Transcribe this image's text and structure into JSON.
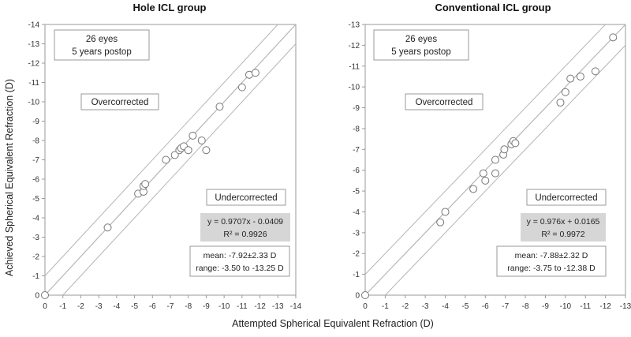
{
  "y_axis_label": "Achieved Spherical Equivalent Refraction (D)",
  "x_axis_label": "Attempted Spherical Equivalent Refraction (D)",
  "chart_data": [
    {
      "type": "scatter",
      "title": "Hole ICL group",
      "xlabel": "Attempted Spherical Equivalent Refraction (D)",
      "ylabel": "Achieved Spherical Equivalent Refraction (D)",
      "xlim": [
        0,
        -14
      ],
      "ylim": [
        0,
        -14
      ],
      "x_ticks": [
        "0",
        "-1",
        "-2",
        "-3",
        "-4",
        "-5",
        "-6",
        "-7",
        "-8",
        "-9",
        "-10",
        "-11",
        "-12",
        "-13",
        "-14"
      ],
      "y_ticks": [
        "0",
        "-1",
        "-2",
        "-3",
        "-4",
        "-5",
        "-6",
        "-7",
        "-8",
        "-9",
        "-10",
        "-11",
        "-12",
        "-13",
        "-14"
      ],
      "series": [
        {
          "name": "eyes",
          "points": [
            {
              "x": 0,
              "y": 0
            },
            {
              "x": -3.5,
              "y": -3.5
            },
            {
              "x": -5.2,
              "y": -5.25
            },
            {
              "x": -5.5,
              "y": -5.35
            },
            {
              "x": -5.5,
              "y": -5.65
            },
            {
              "x": -5.6,
              "y": -5.75
            },
            {
              "x": -6.75,
              "y": -7.0
            },
            {
              "x": -7.25,
              "y": -7.25
            },
            {
              "x": -7.5,
              "y": -7.5
            },
            {
              "x": -7.6,
              "y": -7.6
            },
            {
              "x": -7.75,
              "y": -7.7
            },
            {
              "x": -8.0,
              "y": -7.5
            },
            {
              "x": -8.25,
              "y": -8.25
            },
            {
              "x": -8.75,
              "y": -8.0
            },
            {
              "x": -9.0,
              "y": -7.5
            },
            {
              "x": -9.75,
              "y": -9.75
            },
            {
              "x": -11.0,
              "y": -10.75
            },
            {
              "x": -11.4,
              "y": -11.4
            },
            {
              "x": -11.75,
              "y": -11.5
            }
          ]
        }
      ],
      "annotations": {
        "count_line1": "26 eyes",
        "count_line2": "5 years postop",
        "overcorrected": "Overcorrected",
        "undercorrected": "Undercorrected",
        "equation": "y = 0.9707x - 0.0409",
        "r_squared": "R² = 0.9926",
        "mean": "mean: -7.92±2.33 D",
        "range": "range: -3.50 to -13.25 D"
      },
      "reference_lines": [
        "y = x",
        "y = x ± 1 D"
      ],
      "grid": false
    },
    {
      "type": "scatter",
      "title": "Conventional ICL group",
      "xlabel": "Attempted Spherical Equivalent Refraction (D)",
      "ylabel": "Achieved Spherical Equivalent Refraction (D)",
      "xlim": [
        0,
        -13
      ],
      "ylim": [
        0,
        -13
      ],
      "x_ticks": [
        "0",
        "-1",
        "-2",
        "-3",
        "-4",
        "-5",
        "-6",
        "-7",
        "-8",
        "-9",
        "-10",
        "-11",
        "-12",
        "-13"
      ],
      "y_ticks": [
        "0",
        "-1",
        "-2",
        "-3",
        "-4",
        "-5",
        "-6",
        "-7",
        "-8",
        "-9",
        "-10",
        "-11",
        "-12",
        "-13"
      ],
      "series": [
        {
          "name": "eyes",
          "points": [
            {
              "x": 0,
              "y": 0
            },
            {
              "x": -3.75,
              "y": -3.5
            },
            {
              "x": -4.0,
              "y": -4.0
            },
            {
              "x": -5.4,
              "y": -5.1
            },
            {
              "x": -5.9,
              "y": -5.85
            },
            {
              "x": -6.0,
              "y": -5.5
            },
            {
              "x": -6.5,
              "y": -5.85
            },
            {
              "x": -6.5,
              "y": -6.5
            },
            {
              "x": -6.9,
              "y": -6.75
            },
            {
              "x": -6.95,
              "y": -7.0
            },
            {
              "x": -7.3,
              "y": -7.25
            },
            {
              "x": -7.4,
              "y": -7.4
            },
            {
              "x": -7.5,
              "y": -7.3
            },
            {
              "x": -9.75,
              "y": -9.25
            },
            {
              "x": -10.0,
              "y": -9.75
            },
            {
              "x": -10.25,
              "y": -10.4
            },
            {
              "x": -10.75,
              "y": -10.5
            },
            {
              "x": -11.5,
              "y": -10.75
            },
            {
              "x": -12.38,
              "y": -12.38
            }
          ]
        }
      ],
      "annotations": {
        "count_line1": "26 eyes",
        "count_line2": "5 years postop",
        "overcorrected": "Overcorrected",
        "undercorrected": "Undercorrected",
        "equation": "y = 0.976x + 0.0165",
        "r_squared": "R² = 0.9972",
        "mean": "mean: -7.88±2.32 D",
        "range": "range: -3.75 to -12.38 D"
      },
      "reference_lines": [
        "y = x",
        "y = x ± 1 D"
      ],
      "grid": false
    }
  ]
}
